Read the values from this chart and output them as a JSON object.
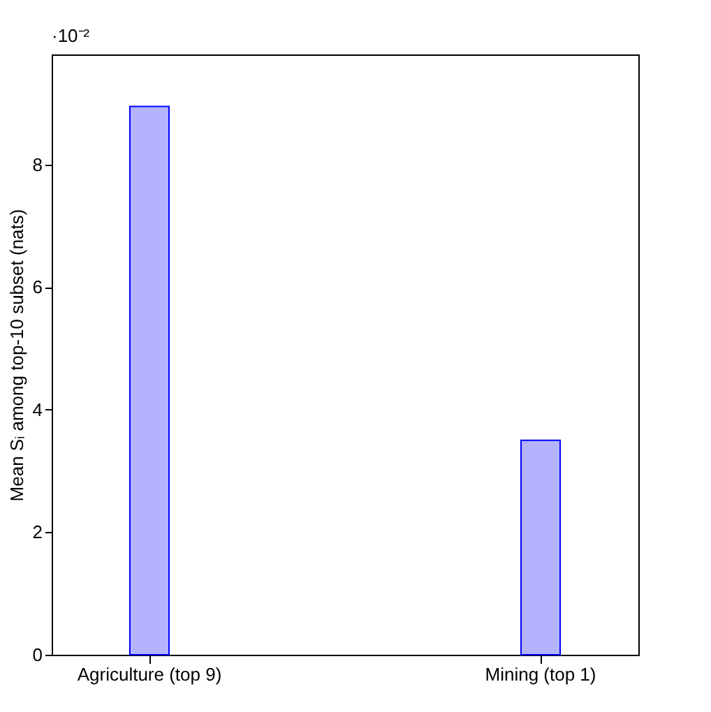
{
  "chart_data": {
    "type": "bar",
    "categories": [
      "Agriculture (top 9)",
      "Mining (top 1)"
    ],
    "values": [
      8.95,
      3.5
    ],
    "color": "#b3b3ff",
    "ylabel": "Mean Sᵢ among top-10 subset (nats)",
    "ylim": [
      0,
      9.8
    ],
    "yticks": [
      0,
      2,
      4,
      6,
      8
    ],
    "annotations": [
      "·10⁻²"
    ],
    "grid": false
  }
}
